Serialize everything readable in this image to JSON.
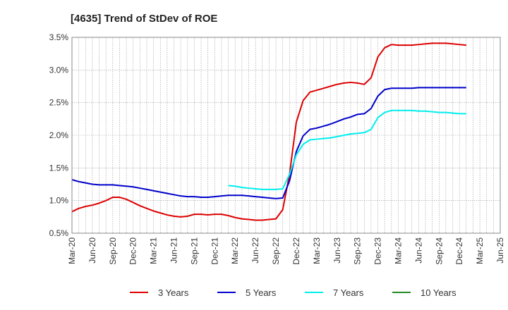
{
  "chart_data": {
    "type": "line",
    "title": "[4635]  Trend of StDev of ROE",
    "xlabel": "",
    "ylabel": "",
    "x_ticks": [
      "Mar-20",
      "Jun-20",
      "Sep-20",
      "Dec-20",
      "Mar-21",
      "Jun-21",
      "Sep-21",
      "Dec-21",
      "Mar-22",
      "Jun-22",
      "Sep-22",
      "Dec-22",
      "Mar-23",
      "Jun-23",
      "Sep-23",
      "Dec-23",
      "Mar-24",
      "Jun-24",
      "Sep-24",
      "Dec-24",
      "Mar-25",
      "Jun-25"
    ],
    "y_ticks": [
      "0.5%",
      "1.0%",
      "1.5%",
      "2.0%",
      "2.5%",
      "3.0%",
      "3.5%"
    ],
    "ylim": [
      0.5,
      3.5
    ],
    "grid": true,
    "legend_position": "bottom",
    "series": [
      {
        "name": "3 Years",
        "color": "#dd0000",
        "start_index": 0,
        "values": [
          0.83,
          0.88,
          0.91,
          0.93,
          0.96,
          1.0,
          1.05,
          1.05,
          1.02,
          0.97,
          0.92,
          0.88,
          0.84,
          0.81,
          0.78,
          0.76,
          0.75,
          0.76,
          0.79,
          0.79,
          0.78,
          0.79,
          0.79,
          0.77,
          0.74,
          0.72,
          0.71,
          0.7,
          0.7,
          0.71,
          0.72,
          0.86,
          1.4,
          2.2,
          2.53,
          2.66,
          2.69,
          2.72,
          2.75,
          2.78,
          2.8,
          2.81,
          2.8,
          2.78,
          2.88,
          3.2,
          3.34,
          3.39,
          3.38,
          3.38,
          3.38,
          3.39,
          3.4,
          3.41,
          3.41,
          3.41,
          3.4,
          3.39,
          3.38
        ]
      },
      {
        "name": "5 Years",
        "color": "#0000cc",
        "start_index": 0,
        "values": [
          1.32,
          1.29,
          1.27,
          1.25,
          1.24,
          1.24,
          1.24,
          1.23,
          1.22,
          1.21,
          1.19,
          1.17,
          1.15,
          1.13,
          1.11,
          1.09,
          1.07,
          1.06,
          1.06,
          1.05,
          1.05,
          1.06,
          1.07,
          1.08,
          1.08,
          1.08,
          1.07,
          1.06,
          1.05,
          1.04,
          1.03,
          1.04,
          1.3,
          1.75,
          1.99,
          2.09,
          2.11,
          2.14,
          2.17,
          2.21,
          2.25,
          2.28,
          2.32,
          2.33,
          2.41,
          2.6,
          2.7,
          2.72,
          2.72,
          2.72,
          2.72,
          2.73,
          2.73,
          2.73,
          2.73,
          2.73,
          2.73,
          2.73,
          2.73
        ]
      },
      {
        "name": "7 Years",
        "color": "#00eeee",
        "start_index": 23,
        "values": [
          1.23,
          1.22,
          1.2,
          1.19,
          1.18,
          1.17,
          1.17,
          1.17,
          1.18,
          1.4,
          1.7,
          1.86,
          1.93,
          1.94,
          1.95,
          1.96,
          1.98,
          2.0,
          2.02,
          2.03,
          2.04,
          2.09,
          2.27,
          2.35,
          2.38,
          2.38,
          2.38,
          2.38,
          2.37,
          2.37,
          2.36,
          2.35,
          2.35,
          2.34,
          2.33,
          2.33
        ]
      },
      {
        "name": "10 Years",
        "color": "#228822",
        "start_index": 0,
        "values": []
      }
    ]
  }
}
